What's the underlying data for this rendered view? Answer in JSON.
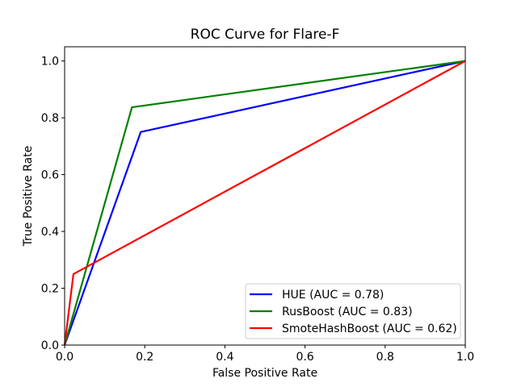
{
  "chart_data": {
    "type": "line",
    "title": "ROC Curve for Flare-F",
    "xlabel": "False Positive Rate",
    "ylabel": "True Positive Rate",
    "xlim": [
      0,
      1
    ],
    "ylim": [
      0,
      1.05
    ],
    "xticks": [
      "0.0",
      "0.2",
      "0.4",
      "0.6",
      "0.8",
      "1.0"
    ],
    "yticks": [
      "0.0",
      "0.2",
      "0.4",
      "0.6",
      "0.8",
      "1.0"
    ],
    "grid": false,
    "legend_position": "lower-right",
    "series": [
      {
        "name": "HUE (AUC = 0.78)",
        "color": "#0000ff",
        "x": [
          0,
          0.19,
          1
        ],
        "y": [
          0,
          0.75,
          1
        ]
      },
      {
        "name": "RusBoost (AUC = 0.83)",
        "color": "#008000",
        "x": [
          0,
          0.168,
          1
        ],
        "y": [
          0,
          0.837,
          1
        ]
      },
      {
        "name": "SmoteHashBoost (AUC = 0.62)",
        "color": "#ff0000",
        "x": [
          0,
          0.022,
          1
        ],
        "y": [
          0,
          0.25,
          1
        ]
      }
    ]
  }
}
